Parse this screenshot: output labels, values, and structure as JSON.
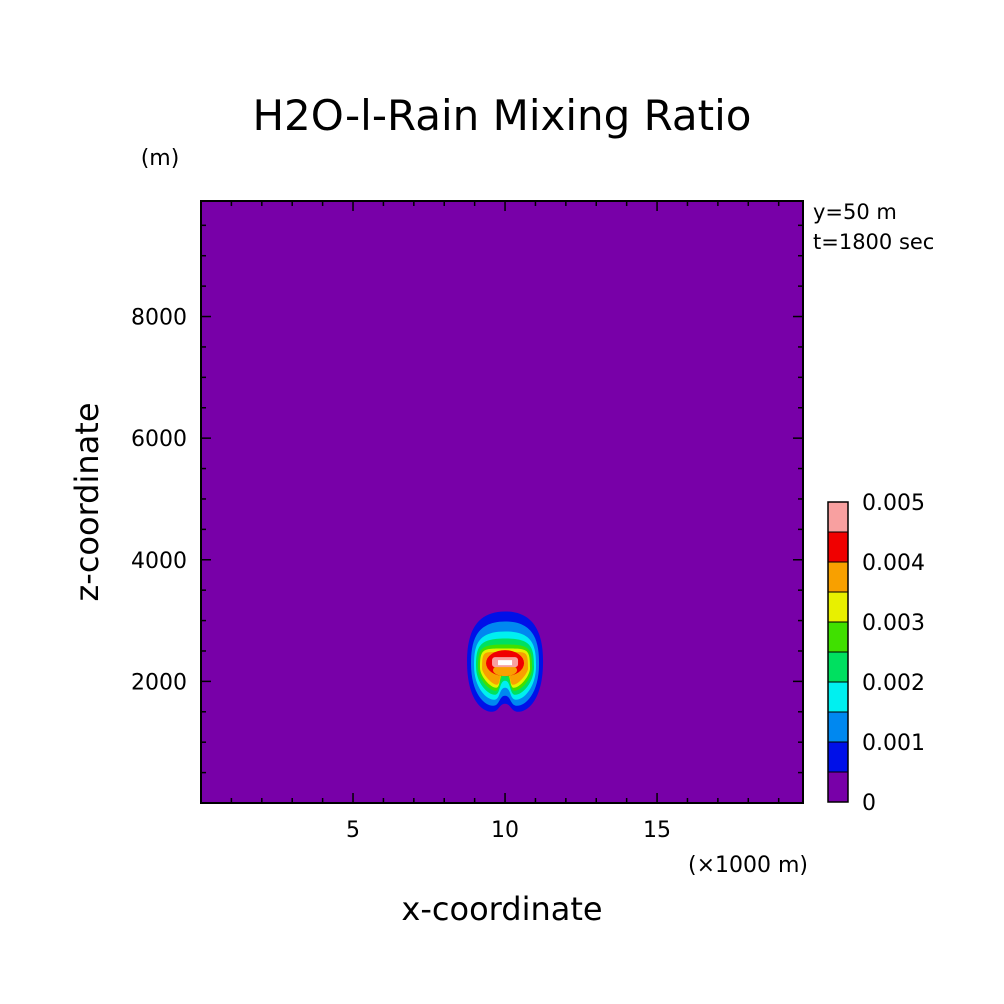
{
  "chart_data": {
    "type": "heatmap",
    "title": "H2O-l-Rain Mixing Ratio",
    "xlabel": "x-coordinate",
    "ylabel": "z-coordinate",
    "x_unit": "(×1000 m)",
    "y_unit": "(m)",
    "xlim": [
      0,
      19.8
    ],
    "ylim": [
      0,
      9900
    ],
    "x_ticks": [
      5,
      10,
      15
    ],
    "y_ticks": [
      2000,
      4000,
      6000,
      8000
    ],
    "annotations": [
      "y=50 m",
      "t=1800 sec"
    ],
    "colorbar": {
      "levels": [
        0,
        0.0005,
        0.001,
        0.0015,
        0.002,
        0.0025,
        0.003,
        0.0035,
        0.004,
        0.0045,
        0.005
      ],
      "labels": [
        "0",
        "0.001",
        "0.002",
        "0.003",
        "0.004",
        "0.005"
      ],
      "label_values": [
        0,
        0.001,
        0.002,
        0.003,
        0.004,
        0.005
      ],
      "colors": [
        "#7800a8",
        "#0010e8",
        "#0088f0",
        "#00f0f0",
        "#00e060",
        "#40e000",
        "#e8f000",
        "#f8a000",
        "#f00000",
        "#f8a0a0"
      ]
    },
    "feature": {
      "description_value": "rain core",
      "center_x": 10.0,
      "center_z": 2300,
      "top_z": 3150,
      "bottom_z": 1500,
      "max_value": 0.005
    },
    "background_color": "#7800a8",
    "grid": false
  }
}
